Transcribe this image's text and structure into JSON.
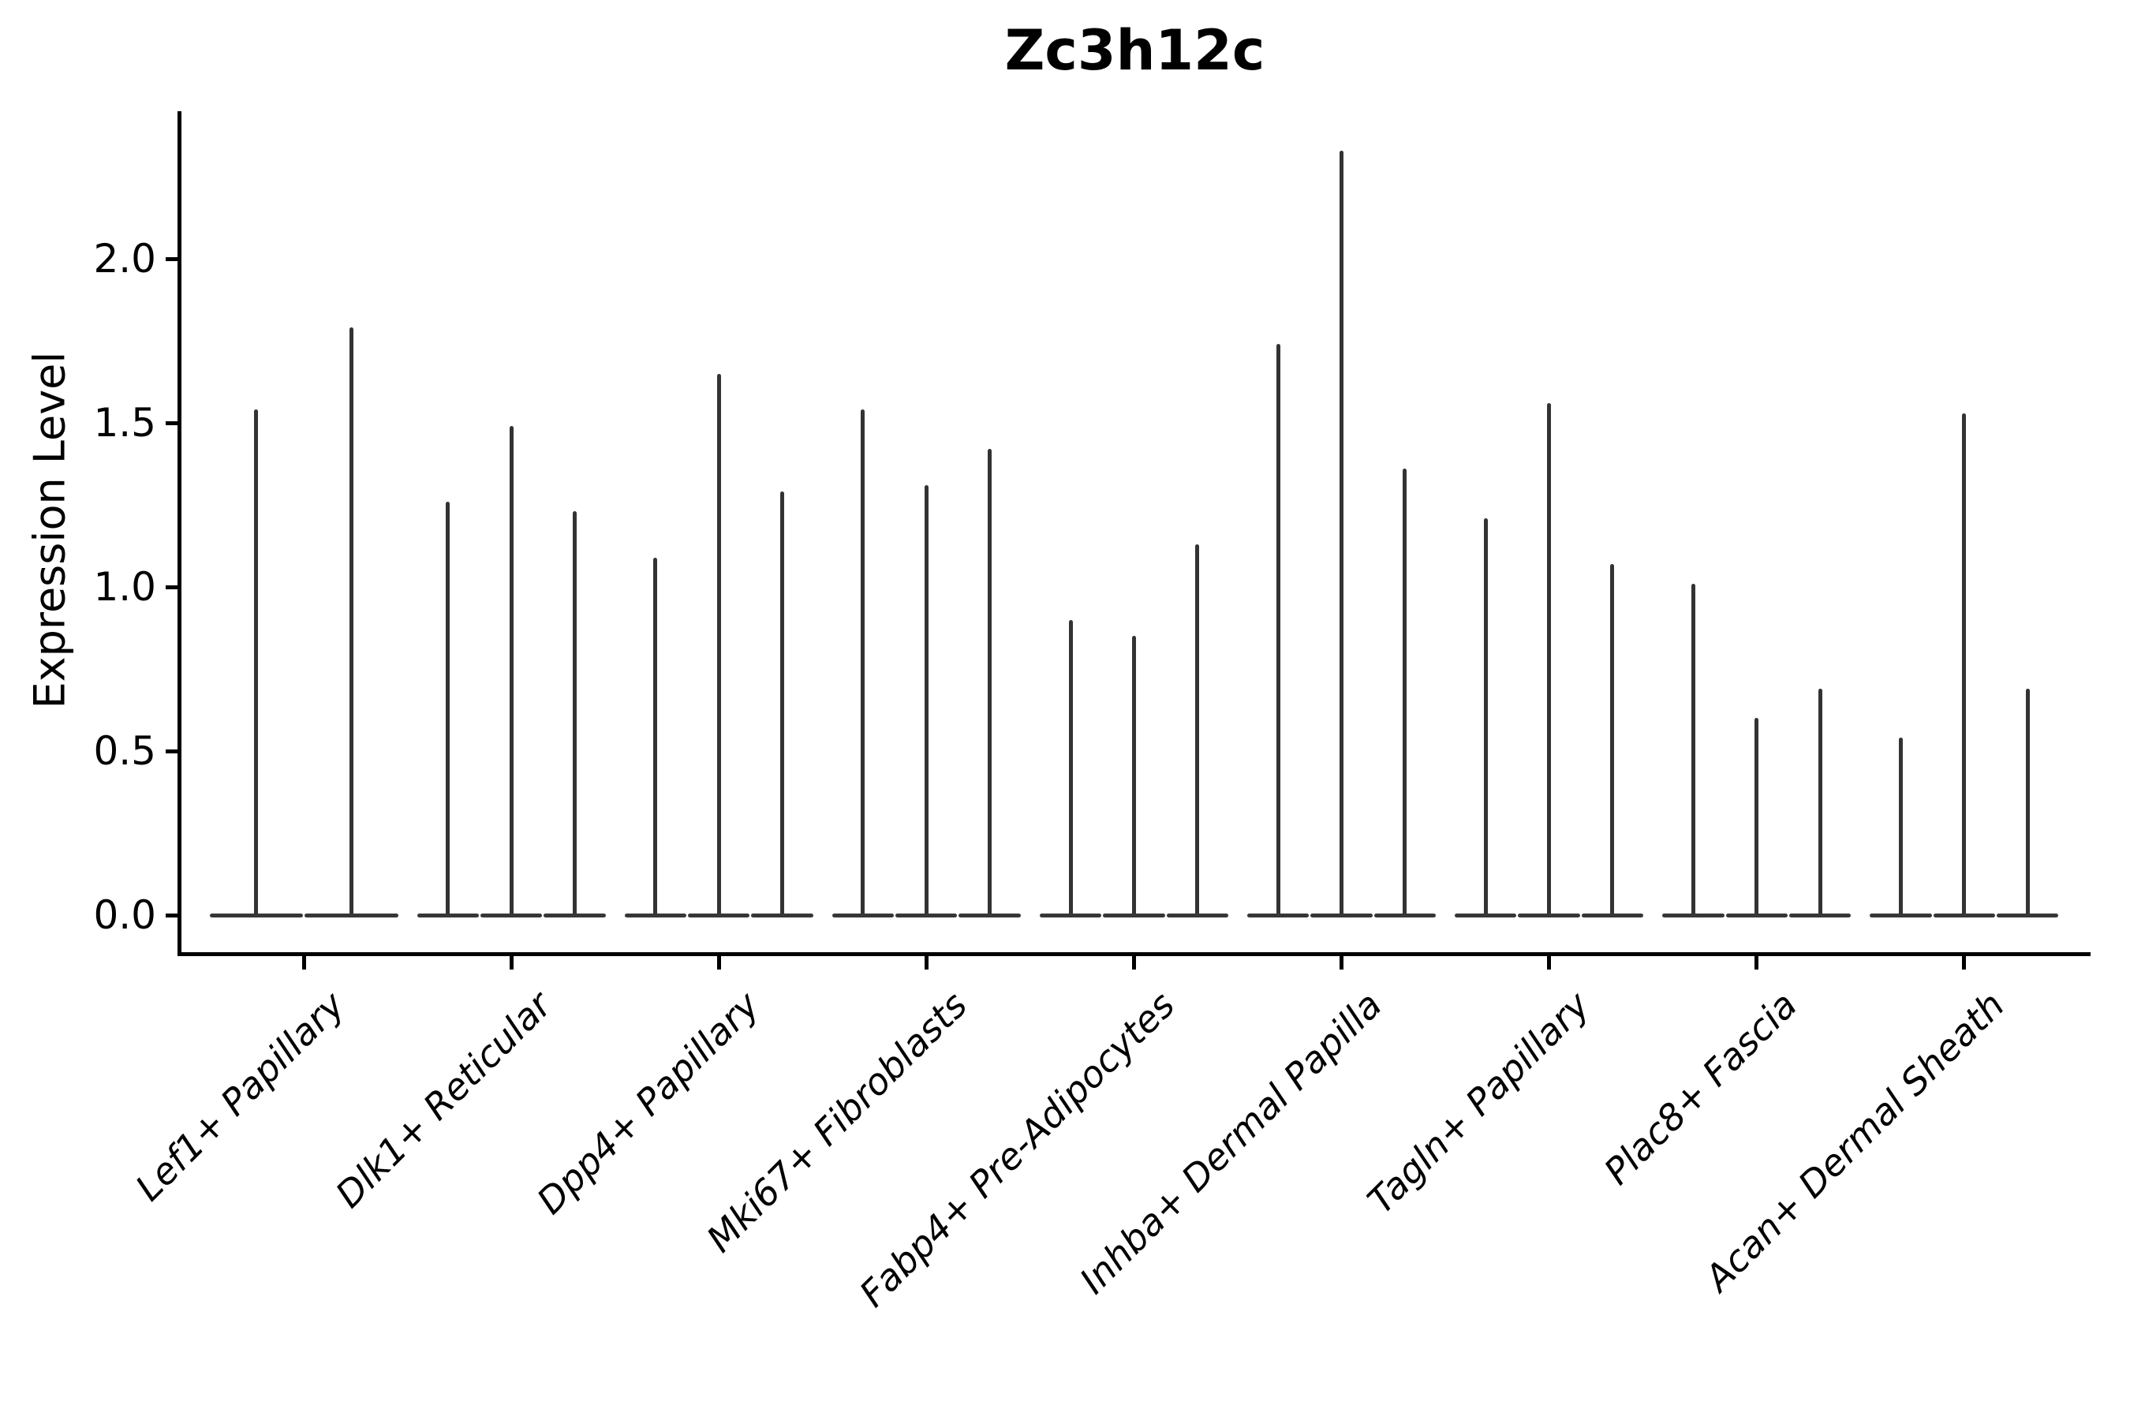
{
  "figure": {
    "background_color": "#ffffff"
  },
  "chart_data": {
    "type": "violin",
    "title": "Zc3h12c",
    "xlabel": "",
    "ylabel": "Expression Level",
    "ylim": [
      0,
      2.45
    ],
    "yticks": [
      {
        "label": "0.0",
        "value": 0.0
      },
      {
        "label": "0.5",
        "value": 0.5
      },
      {
        "label": "1.0",
        "value": 1.0
      },
      {
        "label": "1.5",
        "value": 1.5
      },
      {
        "label": "2.0",
        "value": 2.0
      }
    ],
    "grid": false,
    "legend": "none",
    "categories": [
      "Lef1+ Papillary",
      "Dlk1+ Reticular",
      "Dpp4+ Papillary",
      "Mki67+ Fibroblasts",
      "Fabp4+ Pre-Adipocytes",
      "Inhba+ Dermal Papilla",
      "Tagln+ Papillary",
      "Plac8+ Fascia",
      "Acan+ Dermal Sheath"
    ],
    "groups": [
      {
        "category": "Lef1+ Papillary",
        "violin_max_values": [
          1.54,
          1.79
        ]
      },
      {
        "category": "Dlk1+ Reticular",
        "violin_max_values": [
          1.26,
          1.49,
          1.23
        ]
      },
      {
        "category": "Dpp4+ Papillary",
        "violin_max_values": [
          1.09,
          1.65,
          1.29
        ]
      },
      {
        "category": "Mki67+ Fibroblasts",
        "violin_max_values": [
          1.54,
          1.31,
          1.42
        ]
      },
      {
        "category": "Fabp4+ Pre-Adipocytes",
        "violin_max_values": [
          0.9,
          0.85,
          1.13
        ]
      },
      {
        "category": "Inhba+ Dermal Papilla",
        "violin_max_values": [
          1.74,
          2.33,
          1.36
        ]
      },
      {
        "category": "Tagln+ Papillary",
        "violin_max_values": [
          1.21,
          1.56,
          1.07
        ]
      },
      {
        "category": "Plac8+ Fascia",
        "violin_max_values": [
          1.01,
          0.6,
          0.69
        ]
      },
      {
        "category": "Acan+ Dermal Sheath",
        "violin_max_values": [
          0.54,
          1.53,
          0.69
        ]
      }
    ],
    "colors": {
      "violin": "#333333",
      "axis": "#000000",
      "background": "#ffffff"
    }
  }
}
